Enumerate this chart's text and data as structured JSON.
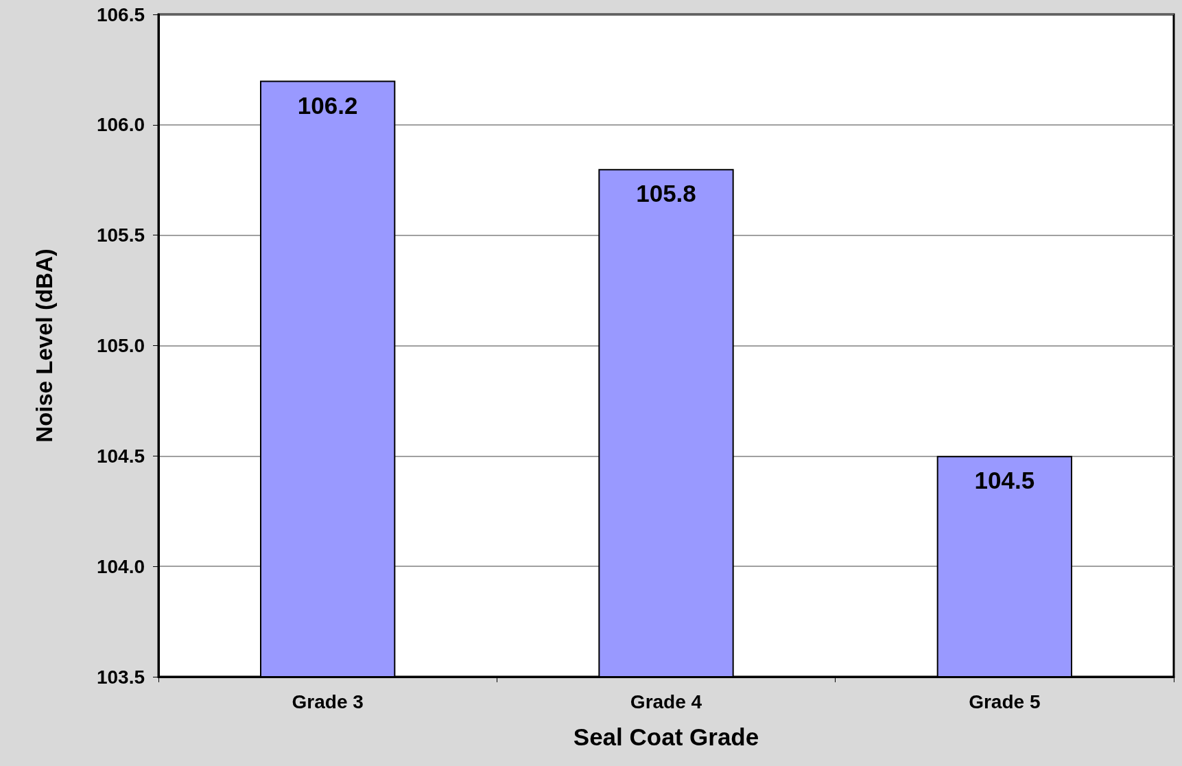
{
  "chart_data": {
    "type": "bar",
    "xlabel": "Seal Coat Grade",
    "ylabel": "Noise Level (dBA)",
    "categories": [
      "Grade 3",
      "Grade 4",
      "Grade 5"
    ],
    "values": [
      106.2,
      105.8,
      104.5
    ],
    "color": "#9999ff",
    "ylim": [
      103.5,
      106.5
    ],
    "yticks": [
      {
        "value": 103.5,
        "label": "103.5"
      },
      {
        "value": 104,
        "label": "104.0"
      },
      {
        "value": 104.5,
        "label": "104.5"
      },
      {
        "value": 105,
        "label": "105.0"
      },
      {
        "value": 105.5,
        "label": "105.5"
      },
      {
        "value": 106,
        "label": "106.0"
      },
      {
        "value": 106.5,
        "label": "106.5"
      }
    ],
    "grid": "y",
    "data_labels": true
  }
}
